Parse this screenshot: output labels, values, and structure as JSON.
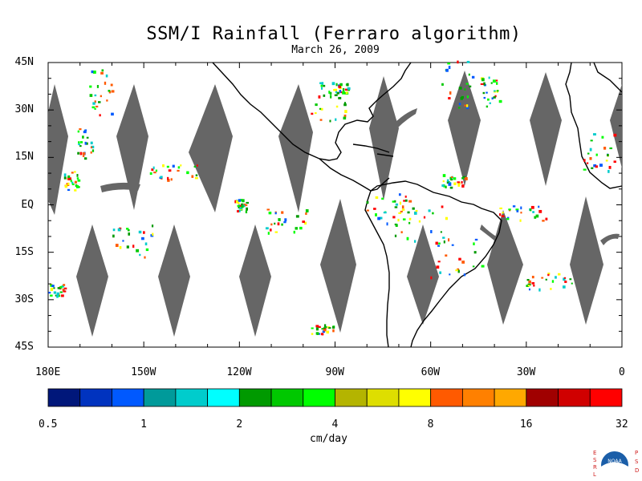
{
  "title": "SSM/I Rainfall (Ferraro algorithm)",
  "date": "March 26, 2009",
  "lat_labels": [
    "45N",
    "30N",
    "15N",
    "EQ",
    "15S",
    "30S",
    "45S"
  ],
  "lon_labels": [
    "180E",
    "150W",
    "120W",
    "90W",
    "60W",
    "30W",
    "0"
  ],
  "colorbar": {
    "colors": [
      "#00177a",
      "#0033bf",
      "#0059ff",
      "#009a9a",
      "#00cccc",
      "#00ffff",
      "#009a00",
      "#00c800",
      "#00ff00",
      "#b4b400",
      "#dede00",
      "#ffff00",
      "#ff5a00",
      "#ff8000",
      "#ffa800",
      "#a00000",
      "#d00000",
      "#ff0000"
    ],
    "tick_labels": [
      "0.5",
      "1",
      "2",
      "4",
      "8",
      "16",
      "32"
    ],
    "units": "cm/day"
  },
  "logo": {
    "left_letters": "ESRL",
    "right_letters": "PSD",
    "center_text": "NOAA"
  },
  "colors": {
    "no_data": "#666666",
    "coastline": "#000000",
    "background": "#ffffff"
  }
}
